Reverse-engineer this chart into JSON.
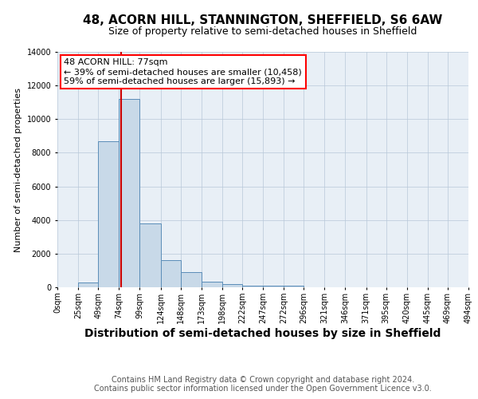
{
  "title": "48, ACORN HILL, STANNINGTON, SHEFFIELD, S6 6AW",
  "subtitle": "Size of property relative to semi-detached houses in Sheffield",
  "xlabel": "Distribution of semi-detached houses by size in Sheffield",
  "ylabel": "Number of semi-detached properties",
  "footer_line1": "Contains HM Land Registry data © Crown copyright and database right 2024.",
  "footer_line2": "Contains public sector information licensed under the Open Government Licence v3.0.",
  "bin_labels": [
    "0sqm",
    "25sqm",
    "49sqm",
    "74sqm",
    "99sqm",
    "124sqm",
    "148sqm",
    "173sqm",
    "198sqm",
    "222sqm",
    "247sqm",
    "272sqm",
    "296sqm",
    "321sqm",
    "346sqm",
    "371sqm",
    "395sqm",
    "420sqm",
    "445sqm",
    "469sqm",
    "494sqm"
  ],
  "bin_edges": [
    0,
    25,
    49,
    74,
    99,
    124,
    148,
    173,
    198,
    222,
    247,
    272,
    296,
    321,
    346,
    371,
    395,
    420,
    445,
    469,
    494
  ],
  "bar_values": [
    0,
    300,
    8700,
    11200,
    3800,
    1600,
    900,
    350,
    200,
    100,
    100,
    80,
    0,
    0,
    0,
    0,
    0,
    0,
    0,
    0
  ],
  "bar_color": "#c8d9e8",
  "bar_edge_color": "#5b8db8",
  "property_line_x": 77,
  "property_line_color": "#cc0000",
  "annotation_text_line1": "48 ACORN HILL: 77sqm",
  "annotation_text_line2": "← 39% of semi-detached houses are smaller (10,458)",
  "annotation_text_line3": "59% of semi-detached houses are larger (15,893) →",
  "ylim": [
    0,
    14000
  ],
  "xlim": [
    0,
    494
  ],
  "background_color": "#ffffff",
  "axes_background_color": "#e8eff6",
  "grid_color": "#b8c8d8",
  "title_fontsize": 11,
  "subtitle_fontsize": 9,
  "axis_xlabel_fontsize": 10,
  "axis_ylabel_fontsize": 8,
  "tick_fontsize": 7,
  "annotation_fontsize": 8,
  "footer_fontsize": 7
}
